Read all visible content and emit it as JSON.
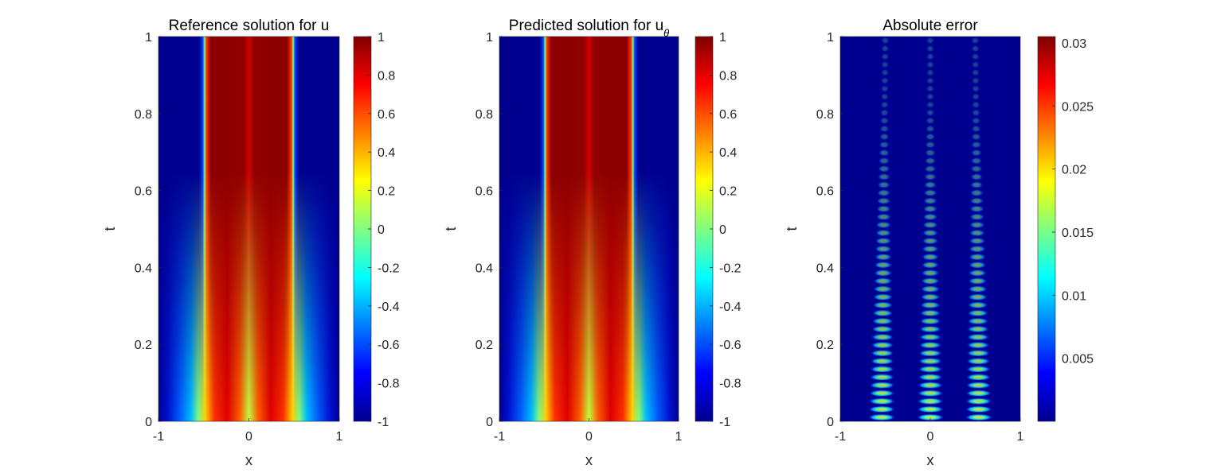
{
  "chart_data": [
    {
      "type": "heatmap",
      "title": "Reference solution for u",
      "title_subscript": "",
      "xlabel": "x",
      "ylabel": "t",
      "xlim": [
        -1,
        1
      ],
      "ylim": [
        0,
        1
      ],
      "xticks": [
        "-1",
        "0",
        "1"
      ],
      "yticks": [
        "0",
        "0.2",
        "0.4",
        "0.6",
        "0.8",
        "1"
      ],
      "colormap": "jet",
      "colorbar": {
        "min": -1,
        "max": 1,
        "ticks": [
          "-1",
          "-0.8",
          "-0.6",
          "-0.4",
          "-0.2",
          "0",
          "0.2",
          "0.4",
          "0.6",
          "0.8",
          "1"
        ]
      },
      "field": "allen-cahn solution: u≈-1 for |x|>~0.5, u≈1 inside, dip near x=0 at small t"
    },
    {
      "type": "heatmap",
      "title": "Predicted solution for u",
      "title_subscript": "θ",
      "xlabel": "x",
      "ylabel": "t",
      "xlim": [
        -1,
        1
      ],
      "ylim": [
        0,
        1
      ],
      "xticks": [
        "-1",
        "0",
        "1"
      ],
      "yticks": [
        "0",
        "0.2",
        "0.4",
        "0.6",
        "0.8",
        "1"
      ],
      "colormap": "jet",
      "colorbar": {
        "min": -1,
        "max": 1,
        "ticks": [
          "-1",
          "-0.8",
          "-0.6",
          "-0.4",
          "-0.2",
          "0",
          "0.2",
          "0.4",
          "0.6",
          "0.8",
          "1"
        ]
      },
      "field": "prediction matching reference"
    },
    {
      "type": "heatmap",
      "title": "Absolute error",
      "title_subscript": "",
      "xlabel": "x",
      "ylabel": "t",
      "xlim": [
        -1,
        1
      ],
      "ylim": [
        0,
        1
      ],
      "xticks": [
        "-1",
        "0",
        "1"
      ],
      "yticks": [
        "0",
        "0.2",
        "0.4",
        "0.6",
        "0.8",
        "1"
      ],
      "colormap": "jet",
      "colorbar": {
        "min": 0,
        "max": 0.0305,
        "ticks": [
          "0.005",
          "0.01",
          "0.015",
          "0.02",
          "0.025",
          "0.03"
        ],
        "tick_values": [
          0.005,
          0.01,
          0.015,
          0.02,
          0.025,
          0.03
        ]
      },
      "error_band_centers_x": [
        -0.5,
        0,
        0.5
      ],
      "error_peak": 0.03
    }
  ]
}
